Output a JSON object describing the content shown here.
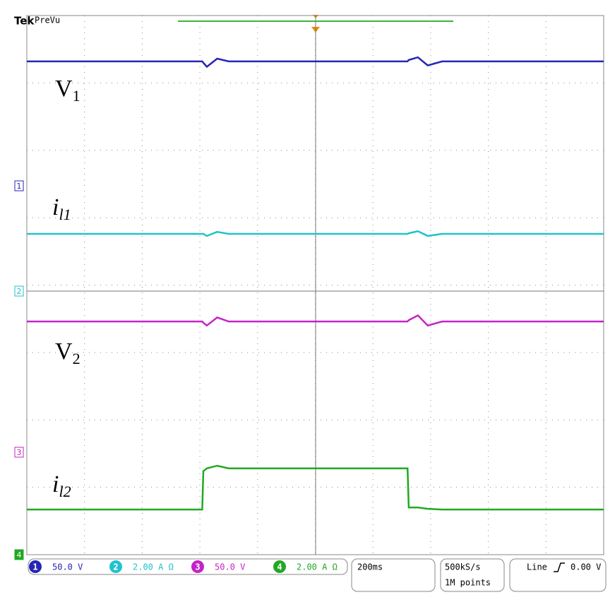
{
  "chart_data": {
    "type": "line",
    "header": {
      "brand": "Tek",
      "mode": "PreVu"
    },
    "xlim": [
      0,
      10
    ],
    "ylim": [
      -4,
      4
    ],
    "xticks": [
      0,
      1,
      2,
      3,
      4,
      5,
      6,
      7,
      8,
      9,
      10
    ],
    "yticks": [
      -4,
      -3,
      -2,
      -1,
      0,
      1,
      2,
      3,
      4
    ],
    "grid": true,
    "x": [
      0,
      3.04,
      3.06,
      3.12,
      3.3,
      3.5,
      6.6,
      6.62,
      6.78,
      6.95,
      7.2,
      10
    ],
    "series": [
      {
        "color": "#2626b4",
        "values": [
          3.32,
          3.32,
          3.3,
          3.24,
          3.36,
          3.32,
          3.32,
          3.34,
          3.38,
          3.26,
          3.32,
          3.32
        ]
      },
      {
        "color": "#22c2cc",
        "values": [
          0.76,
          0.76,
          0.76,
          0.73,
          0.79,
          0.76,
          0.76,
          0.77,
          0.8,
          0.73,
          0.76,
          0.76
        ]
      },
      {
        "color": "#c423c8",
        "values": [
          -0.54,
          -0.54,
          -0.56,
          -0.6,
          -0.48,
          -0.54,
          -0.54,
          -0.52,
          -0.45,
          -0.6,
          -0.54,
          -0.54
        ]
      },
      {
        "color": "#22a822",
        "values": [
          -3.33,
          -3.33,
          -2.76,
          -2.72,
          -2.68,
          -2.72,
          -2.72,
          -3.3,
          -3.3,
          -3.32,
          -3.33,
          -3.33
        ]
      }
    ],
    "channel_markers": [
      "1",
      "2",
      "3",
      "4"
    ],
    "annotations": [
      {
        "text": "V",
        "sub": "1"
      },
      {
        "text": "i",
        "sub": "l1"
      },
      {
        "text": "V",
        "sub": "2"
      },
      {
        "text": "i",
        "sub": "l2"
      }
    ],
    "status": {
      "channels": [
        {
          "badge": "1",
          "setting": "50.0 V"
        },
        {
          "badge": "2",
          "setting": "2.00 A Ω"
        },
        {
          "badge": "3",
          "setting": "50.0 V"
        },
        {
          "badge": "4",
          "setting": "2.00 A Ω"
        }
      ],
      "timebase": "200ms",
      "sample_rate": "500kS/s",
      "record_length": "1M points",
      "trigger_source": "Line",
      "trigger_level": "0.00 V"
    }
  }
}
